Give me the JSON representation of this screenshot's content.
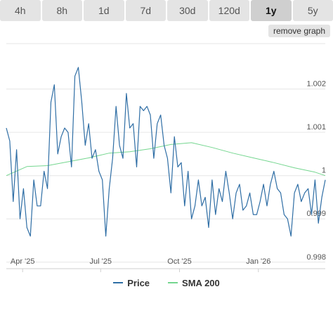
{
  "timeframes": [
    {
      "label": "4h"
    },
    {
      "label": "8h"
    },
    {
      "label": "1d"
    },
    {
      "label": "7d"
    },
    {
      "label": "30d"
    },
    {
      "label": "120d"
    },
    {
      "label": "1y",
      "active": true
    },
    {
      "label": "5y"
    }
  ],
  "remove_graph_label": "remove graph",
  "colors": {
    "price": "#2f6ea5",
    "sma": "#74d68f",
    "grid": "#e6e6e6"
  },
  "chart_data": {
    "type": "line",
    "x_ticks": [
      "Apr '25",
      "Jul '25",
      "Oct '25",
      "Jan '26"
    ],
    "y_ticks": [
      0.998,
      0.999,
      1,
      1.001,
      1.002
    ],
    "y_tick_labels": [
      "0.998",
      "0.999",
      "1",
      "1.001",
      "1.002"
    ],
    "ylim": [
      0.99785,
      1.00305
    ],
    "x_range": [
      "2025-03-13",
      "2026-03-20"
    ],
    "grid": true,
    "legend_placement": "bottom-center",
    "series": [
      {
        "name": "Price",
        "x": [
          "2025-03-13",
          "2025-03-17",
          "2025-03-21",
          "2025-03-25",
          "2025-03-29",
          "2025-04-02",
          "2025-04-06",
          "2025-04-10",
          "2025-04-14",
          "2025-04-18",
          "2025-04-22",
          "2025-04-26",
          "2025-04-30",
          "2025-05-04",
          "2025-05-08",
          "2025-05-12",
          "2025-05-16",
          "2025-05-20",
          "2025-05-24",
          "2025-05-28",
          "2025-06-01",
          "2025-06-05",
          "2025-06-09",
          "2025-06-13",
          "2025-06-17",
          "2025-06-21",
          "2025-06-25",
          "2025-06-29",
          "2025-07-03",
          "2025-07-07",
          "2025-07-11",
          "2025-07-15",
          "2025-07-19",
          "2025-07-23",
          "2025-07-27",
          "2025-07-31",
          "2025-08-04",
          "2025-08-08",
          "2025-08-12",
          "2025-08-16",
          "2025-08-20",
          "2025-08-24",
          "2025-08-28",
          "2025-09-01",
          "2025-09-05",
          "2025-09-09",
          "2025-09-13",
          "2025-09-17",
          "2025-09-21",
          "2025-09-25",
          "2025-09-29",
          "2025-10-03",
          "2025-10-07",
          "2025-10-11",
          "2025-10-15",
          "2025-10-19",
          "2025-10-23",
          "2025-10-27",
          "2025-10-31",
          "2025-11-04",
          "2025-11-08",
          "2025-11-12",
          "2025-11-16",
          "2025-11-20",
          "2025-11-24",
          "2025-11-28",
          "2025-12-02",
          "2025-12-06",
          "2025-12-10",
          "2025-12-14",
          "2025-12-18",
          "2025-12-22",
          "2025-12-26",
          "2025-12-30",
          "2026-01-03",
          "2026-01-07",
          "2026-01-11",
          "2026-01-15",
          "2026-01-19",
          "2026-01-23",
          "2026-01-27",
          "2026-01-31",
          "2026-02-04",
          "2026-02-08",
          "2026-02-12",
          "2026-02-16",
          "2026-02-20",
          "2026-02-24",
          "2026-02-28",
          "2026-03-04",
          "2026-03-08",
          "2026-03-12",
          "2026-03-16",
          "2026-03-20"
        ],
        "values": [
          1.0011,
          1.0008,
          0.9994,
          1.0006,
          0.999,
          0.9997,
          0.9988,
          0.9986,
          0.9999,
          0.9993,
          0.9993,
          1.0001,
          0.9997,
          1.0017,
          1.0021,
          1.0005,
          1.0009,
          1.0011,
          1.001,
          1.0002,
          1.0023,
          1.0025,
          1.0017,
          1.0007,
          1.0012,
          1.0004,
          1.0006,
          1.0001,
          0.9999,
          0.9986,
          0.9997,
          1.0004,
          1.0016,
          1.0007,
          1.0004,
          1.0019,
          1.0011,
          1.0012,
          1.0002,
          1.0016,
          1.0015,
          1.0016,
          1.0014,
          1.0004,
          1.0012,
          1.0014,
          1.0007,
          1.0004,
          0.9996,
          1.0009,
          1.0002,
          1.0003,
          0.9993,
          1.0001,
          0.999,
          0.9993,
          0.9999,
          0.9993,
          0.9995,
          0.9988,
          0.9999,
          0.9991,
          0.9997,
          0.9994,
          1.0001,
          0.9996,
          0.999,
          0.9996,
          0.9998,
          0.9992,
          0.9993,
          0.9996,
          0.9991,
          0.9991,
          0.9994,
          0.9998,
          0.9993,
          0.9998,
          1.0001,
          0.9997,
          0.9996,
          0.9991,
          0.999,
          0.9986,
          0.9996,
          0.9998,
          0.9994,
          0.9996,
          0.9997,
          0.9991,
          0.9999,
          0.9989,
          0.9995,
          0.9999
        ]
      },
      {
        "name": "SMA 200",
        "x": [
          "2025-03-13",
          "2025-04-06",
          "2025-04-30",
          "2025-05-24",
          "2025-06-17",
          "2025-07-11",
          "2025-08-04",
          "2025-08-28",
          "2025-09-21",
          "2025-10-15",
          "2025-11-08",
          "2025-12-02",
          "2025-12-26",
          "2026-01-19",
          "2026-02-12",
          "2026-03-08",
          "2026-03-20"
        ],
        "values": [
          1.0,
          1.00021,
          1.00023,
          1.00032,
          1.00041,
          1.00052,
          1.00055,
          1.00062,
          1.00072,
          1.00076,
          1.00065,
          1.00052,
          1.00041,
          1.0003,
          1.00018,
          1.00008,
          1.0
        ]
      }
    ]
  }
}
